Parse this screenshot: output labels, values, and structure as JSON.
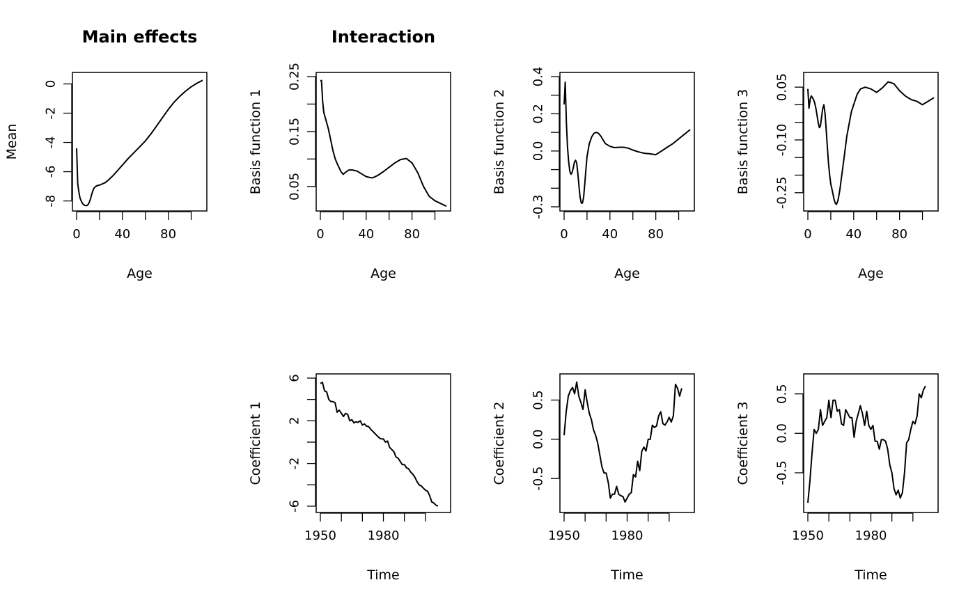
{
  "chart_data": [
    {
      "id": "main_effects",
      "type": "line",
      "title": "Main effects",
      "xlabel": "Age",
      "ylabel": "Mean",
      "xlim": [
        0,
        110
      ],
      "ylim": [
        -8.4,
        0.5
      ],
      "xticks": [
        0,
        20,
        40,
        60,
        80,
        100
      ],
      "xtick_labels": [
        "0",
        "",
        "40",
        "",
        "80",
        ""
      ],
      "yticks": [
        0,
        -2,
        -4,
        -6,
        -8
      ],
      "ytick_labels": [
        "0",
        "-2",
        "-4",
        "-6",
        "-8"
      ],
      "x": [
        0,
        1,
        2,
        3,
        4,
        5,
        6,
        7,
        8,
        9,
        10,
        11,
        12,
        13,
        14,
        15,
        16,
        18,
        20,
        22,
        25,
        28,
        32,
        36,
        40,
        45,
        50,
        55,
        60,
        65,
        70,
        75,
        80,
        85,
        90,
        95,
        100,
        105,
        110
      ],
      "y": [
        -4.4,
        -6.8,
        -7.4,
        -7.8,
        -8.0,
        -8.15,
        -8.25,
        -8.3,
        -8.32,
        -8.32,
        -8.25,
        -8.1,
        -7.9,
        -7.6,
        -7.35,
        -7.15,
        -7.05,
        -6.95,
        -6.92,
        -6.85,
        -6.75,
        -6.55,
        -6.25,
        -5.9,
        -5.55,
        -5.1,
        -4.7,
        -4.3,
        -3.9,
        -3.4,
        -2.85,
        -2.3,
        -1.75,
        -1.25,
        -0.85,
        -0.5,
        -0.2,
        0.05,
        0.25
      ]
    },
    {
      "id": "basis1",
      "type": "line",
      "title": "Interaction",
      "xlabel": "Age",
      "ylabel": "Basis function 1",
      "xlim": [
        0,
        110
      ],
      "ylim": [
        0.013,
        0.25
      ],
      "xticks": [
        0,
        20,
        40,
        60,
        80,
        100
      ],
      "xtick_labels": [
        "0",
        "",
        "40",
        "",
        "80",
        ""
      ],
      "yticks": [
        0.25,
        0.2,
        0.15,
        0.1,
        0.05
      ],
      "ytick_labels": [
        "0.25",
        "",
        "0.15",
        "",
        "0.05"
      ],
      "x": [
        0,
        1,
        2,
        3,
        5,
        7,
        9,
        11,
        13,
        15,
        18,
        20,
        22,
        25,
        28,
        32,
        36,
        40,
        44,
        46,
        50,
        55,
        60,
        65,
        70,
        75,
        80,
        85,
        90,
        95,
        100,
        105,
        110
      ],
      "y": [
        0.242,
        0.243,
        0.205,
        0.185,
        0.17,
        0.155,
        0.135,
        0.115,
        0.1,
        0.09,
        0.077,
        0.072,
        0.076,
        0.08,
        0.08,
        0.078,
        0.073,
        0.068,
        0.066,
        0.066,
        0.07,
        0.077,
        0.085,
        0.093,
        0.099,
        0.101,
        0.093,
        0.075,
        0.05,
        0.032,
        0.024,
        0.019,
        0.014
      ]
    },
    {
      "id": "basis2",
      "type": "line",
      "title": "",
      "xlabel": "Age",
      "ylabel": "Basis function 2",
      "xlim": [
        0,
        110
      ],
      "ylim": [
        -0.3,
        0.4
      ],
      "xticks": [
        0,
        20,
        40,
        60,
        80,
        100
      ],
      "xtick_labels": [
        "0",
        "",
        "40",
        "",
        "80",
        ""
      ],
      "yticks": [
        0.4,
        0.3,
        0.2,
        0.1,
        0.0,
        -0.1,
        -0.2,
        -0.3
      ],
      "ytick_labels": [
        "0.4",
        "",
        "0.2",
        "",
        "0.0",
        "",
        "",
        "-0.3"
      ],
      "x": [
        0,
        1,
        2,
        3,
        4,
        5,
        6,
        7,
        8,
        9,
        10,
        11,
        12,
        13,
        14,
        15,
        16,
        17,
        18,
        19,
        20,
        22,
        24,
        26,
        28,
        30,
        32,
        34,
        36,
        40,
        44,
        48,
        52,
        56,
        60,
        65,
        70,
        75,
        80,
        85,
        90,
        95,
        100,
        105,
        110
      ],
      "y": [
        0.25,
        0.37,
        0.15,
        0.02,
        -0.06,
        -0.11,
        -0.125,
        -0.115,
        -0.09,
        -0.06,
        -0.05,
        -0.065,
        -0.12,
        -0.19,
        -0.25,
        -0.28,
        -0.28,
        -0.25,
        -0.18,
        -0.1,
        -0.03,
        0.04,
        0.075,
        0.095,
        0.1,
        0.095,
        0.08,
        0.06,
        0.04,
        0.025,
        0.018,
        0.02,
        0.02,
        0.015,
        0.005,
        -0.005,
        -0.012,
        -0.015,
        -0.02,
        0.0,
        0.02,
        0.04,
        0.065,
        0.09,
        0.115
      ]
    },
    {
      "id": "basis3",
      "type": "line",
      "title": "",
      "xlabel": "Age",
      "ylabel": "Basis function 3",
      "xlim": [
        0,
        110
      ],
      "ylim": [
        -0.29,
        0.08
      ],
      "xticks": [
        0,
        20,
        40,
        60,
        80,
        100
      ],
      "xtick_labels": [
        "0",
        "",
        "40",
        "",
        "80",
        ""
      ],
      "yticks": [
        0.05,
        0.0,
        -0.05,
        -0.1,
        -0.15,
        -0.2,
        -0.25
      ],
      "ytick_labels": [
        "0.05",
        "",
        "",
        "-0.10",
        "",
        "",
        "-0.25"
      ],
      "x": [
        0,
        1,
        2,
        3,
        4,
        5,
        6,
        7,
        8,
        9,
        10,
        11,
        12,
        13,
        14,
        15,
        16,
        17,
        18,
        19,
        20,
        21,
        22,
        23,
        24,
        25,
        26,
        27,
        28,
        29,
        30,
        32,
        34,
        36,
        38,
        40,
        43,
        46,
        50,
        55,
        60,
        65,
        70,
        75,
        80,
        85,
        90,
        95,
        100,
        105,
        110
      ],
      "y": [
        0.045,
        -0.01,
        0.015,
        0.025,
        0.02,
        0.015,
        0.005,
        -0.01,
        -0.03,
        -0.05,
        -0.065,
        -0.06,
        -0.035,
        -0.01,
        0.0,
        -0.025,
        -0.07,
        -0.12,
        -0.165,
        -0.2,
        -0.225,
        -0.24,
        -0.255,
        -0.27,
        -0.28,
        -0.283,
        -0.275,
        -0.26,
        -0.24,
        -0.215,
        -0.19,
        -0.14,
        -0.09,
        -0.055,
        -0.02,
        0.0,
        0.03,
        0.045,
        0.05,
        0.045,
        0.035,
        0.048,
        0.065,
        0.06,
        0.04,
        0.025,
        0.015,
        0.01,
        0.0,
        0.01,
        0.02
      ]
    },
    {
      "id": "coef1",
      "type": "line",
      "title": "",
      "xlabel": "Time",
      "ylabel": "Coefficient 1",
      "xlim": [
        1950,
        2010
      ],
      "ylim": [
        -6.2,
        6.0
      ],
      "xticks": [
        1950,
        1960,
        1970,
        1980,
        1990,
        2000
      ],
      "xtick_labels": [
        "1950",
        "",
        "",
        "1980",
        "",
        ""
      ],
      "yticks": [
        6,
        4,
        2,
        0,
        -2,
        -4,
        -6
      ],
      "ytick_labels": [
        "6",
        "",
        "2",
        "",
        "-2",
        "",
        "-6"
      ],
      "x": [
        1950,
        1951,
        1952,
        1953,
        1954,
        1955,
        1956,
        1957,
        1958,
        1959,
        1960,
        1961,
        1962,
        1963,
        1964,
        1965,
        1966,
        1967,
        1968,
        1969,
        1970,
        1971,
        1972,
        1973,
        1974,
        1975,
        1976,
        1977,
        1978,
        1979,
        1980,
        1981,
        1982,
        1983,
        1984,
        1985,
        1986,
        1987,
        1988,
        1989,
        1990,
        1991,
        1992,
        1993,
        1994,
        1995,
        1996,
        1997,
        1998,
        1999,
        2000,
        2001,
        2002,
        2003,
        2004,
        2005,
        2006
      ],
      "y": [
        5.5,
        5.6,
        4.8,
        4.7,
        4.0,
        3.8,
        3.8,
        3.7,
        2.8,
        3.0,
        2.7,
        2.4,
        2.7,
        2.6,
        2.0,
        2.1,
        1.8,
        1.9,
        1.85,
        2.0,
        1.6,
        1.7,
        1.5,
        1.45,
        1.2,
        1.0,
        0.8,
        0.6,
        0.4,
        0.3,
        0.3,
        0.0,
        0.1,
        -0.5,
        -0.7,
        -0.9,
        -1.4,
        -1.5,
        -1.8,
        -2.1,
        -2.1,
        -2.4,
        -2.5,
        -2.8,
        -3.0,
        -3.3,
        -3.7,
        -4.0,
        -4.1,
        -4.3,
        -4.5,
        -4.6,
        -5.0,
        -5.6,
        -5.7,
        -5.9,
        -6.0
      ]
    },
    {
      "id": "coef2",
      "type": "line",
      "title": "",
      "xlabel": "Time",
      "ylabel": "Coefficient 2",
      "xlim": [
        1950,
        2010
      ],
      "ylim": [
        -0.88,
        0.78
      ],
      "xticks": [
        1950,
        1960,
        1970,
        1980,
        1990,
        2000
      ],
      "xtick_labels": [
        "1950",
        "",
        "",
        "1980",
        "",
        ""
      ],
      "yticks": [
        0.5,
        0.0,
        -0.5
      ],
      "ytick_labels": [
        "0.5",
        "0.0",
        "-0.5"
      ],
      "x": [
        1950,
        1951,
        1952,
        1953,
        1954,
        1955,
        1956,
        1957,
        1958,
        1959,
        1960,
        1961,
        1962,
        1963,
        1964,
        1965,
        1966,
        1967,
        1968,
        1969,
        1970,
        1971,
        1972,
        1973,
        1974,
        1975,
        1976,
        1977,
        1978,
        1979,
        1980,
        1981,
        1982,
        1983,
        1984,
        1985,
        1986,
        1987,
        1988,
        1989,
        1990,
        1991,
        1992,
        1993,
        1994,
        1995,
        1996,
        1997,
        1998,
        1999,
        2000,
        2001,
        2002,
        2003,
        2004,
        2005,
        2006
      ],
      "y": [
        0.05,
        0.35,
        0.55,
        0.62,
        0.66,
        0.58,
        0.73,
        0.55,
        0.47,
        0.38,
        0.63,
        0.47,
        0.33,
        0.25,
        0.12,
        0.05,
        -0.05,
        -0.2,
        -0.35,
        -0.43,
        -0.43,
        -0.55,
        -0.75,
        -0.7,
        -0.7,
        -0.6,
        -0.7,
        -0.72,
        -0.73,
        -0.8,
        -0.75,
        -0.7,
        -0.68,
        -0.45,
        -0.48,
        -0.28,
        -0.4,
        -0.15,
        -0.1,
        -0.15,
        0.0,
        0.0,
        0.18,
        0.15,
        0.17,
        0.3,
        0.35,
        0.2,
        0.18,
        0.22,
        0.28,
        0.22,
        0.3,
        0.7,
        0.65,
        0.55,
        0.65
      ]
    },
    {
      "id": "coef3",
      "type": "line",
      "title": "",
      "xlabel": "Time",
      "ylabel": "Coefficient 3",
      "xlim": [
        1950,
        2010
      ],
      "ylim": [
        -0.95,
        0.7
      ],
      "xticks": [
        1950,
        1960,
        1970,
        1980,
        1990,
        2000
      ],
      "xtick_labels": [
        "1950",
        "",
        "",
        "1980",
        "",
        ""
      ],
      "yticks": [
        0.5,
        0.0,
        -0.5
      ],
      "ytick_labels": [
        "0.5",
        "0.0",
        "-0.5"
      ],
      "x": [
        1950,
        1951,
        1952,
        1953,
        1954,
        1955,
        1956,
        1957,
        1958,
        1959,
        1960,
        1961,
        1962,
        1963,
        1964,
        1965,
        1966,
        1967,
        1968,
        1969,
        1970,
        1971,
        1972,
        1973,
        1974,
        1975,
        1976,
        1977,
        1978,
        1979,
        1980,
        1981,
        1982,
        1983,
        1984,
        1985,
        1986,
        1987,
        1988,
        1989,
        1990,
        1991,
        1992,
        1993,
        1994,
        1995,
        1996,
        1997,
        1998,
        1999,
        2000,
        2001,
        2002,
        2003,
        2004,
        2005,
        2006
      ],
      "y": [
        -0.88,
        -0.6,
        -0.25,
        0.05,
        0.0,
        0.05,
        0.3,
        0.1,
        0.15,
        0.2,
        0.42,
        0.2,
        0.42,
        0.42,
        0.28,
        0.3,
        0.12,
        0.1,
        0.3,
        0.25,
        0.2,
        0.2,
        -0.05,
        0.15,
        0.25,
        0.35,
        0.25,
        0.1,
        0.28,
        0.1,
        0.05,
        0.1,
        -0.1,
        -0.1,
        -0.2,
        -0.08,
        -0.08,
        -0.1,
        -0.2,
        -0.4,
        -0.5,
        -0.7,
        -0.78,
        -0.72,
        -0.82,
        -0.75,
        -0.5,
        -0.12,
        -0.08,
        0.05,
        0.15,
        0.12,
        0.22,
        0.5,
        0.45,
        0.55,
        0.6
      ]
    }
  ]
}
